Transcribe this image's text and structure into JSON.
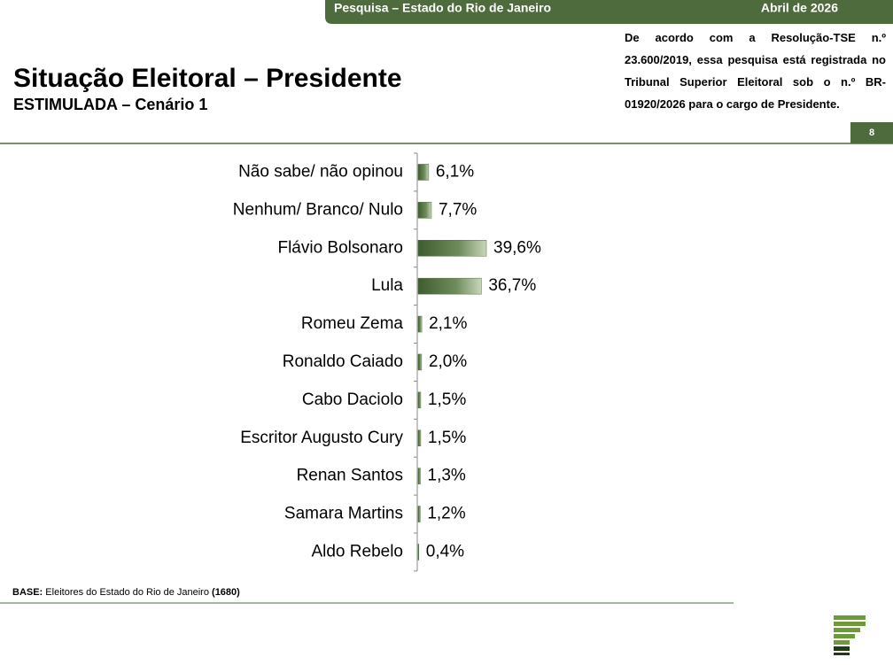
{
  "header": {
    "survey": "Pesquisa – Estado do Rio de Janeiro",
    "date": "Abril de 2026"
  },
  "note": "De acordo com a Resolução-TSE n.º 23.600/2019, essa pesquisa está registrada no Tribunal Superior Eleitoral sob o n.º BR-01920/2026 para o cargo de Presidente.",
  "page_number": "8",
  "base": {
    "label": "BASE:",
    "text": "Eleitores do Estado do Rio de Janeiro",
    "count": "(1680)"
  },
  "chart_data": {
    "type": "hbar",
    "title": "Situação Eleitoral – Presidente",
    "subtitle": "ESTIMULADA – Cenário 1",
    "categories": [
      "Não sabe/ não opinou",
      "Nenhum/ Branco/ Nulo",
      "Flávio Bolsonaro",
      "Lula",
      "Romeu Zema",
      "Ronaldo Caiado",
      "Cabo Daciolo",
      "Escritor Augusto Cury",
      "Renan Santos",
      "Samara Martins",
      "Aldo Rebelo"
    ],
    "values": [
      6.1,
      7.7,
      39.6,
      36.7,
      2.1,
      2.0,
      1.5,
      1.5,
      1.3,
      1.2,
      0.4
    ],
    "value_labels": [
      "6,1%",
      "7,7%",
      "39,6%",
      "36,7%",
      "2,1%",
      "2,0%",
      "1,5%",
      "1,5%",
      "1,3%",
      "1,2%",
      "0,4%"
    ],
    "color": "#4e6b3d"
  }
}
